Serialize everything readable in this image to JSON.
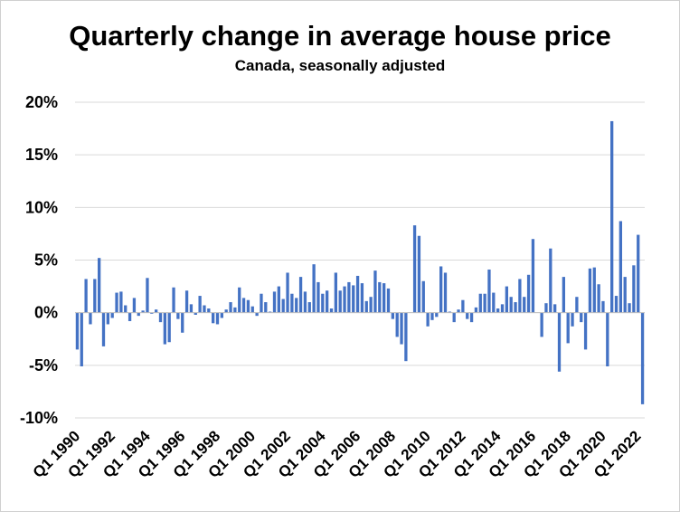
{
  "chart_data": {
    "type": "bar",
    "title": "Quarterly change in average house price",
    "subtitle": "Canada, seasonally adjusted",
    "xlabel": "",
    "ylabel": "",
    "ylim": [
      -10,
      20
    ],
    "yticks": [
      -10,
      -5,
      0,
      5,
      10,
      15,
      20
    ],
    "ytick_labels": [
      "-10%",
      "-5%",
      "0%",
      "5%",
      "10%",
      "15%",
      "20%"
    ],
    "xtick_labels": [
      "Q1 1990",
      "Q1 1992",
      "Q1 1994",
      "Q1 1996",
      "Q1 1998",
      "Q1 2000",
      "Q1 2002",
      "Q1 2004",
      "Q1 2006",
      "Q1 2008",
      "Q1 2010",
      "Q1 2012",
      "Q1 2014",
      "Q1 2016",
      "Q1 2018",
      "Q1 2020",
      "Q1 2022"
    ],
    "start": "Q1 1990",
    "end": "Q1 2022",
    "grid": true,
    "legend": "none",
    "color": "#4472c4",
    "values": [
      -3.5,
      -5.1,
      3.2,
      -1.1,
      3.2,
      5.2,
      -3.2,
      -1.1,
      -0.5,
      1.9,
      2.0,
      0.7,
      -0.8,
      1.4,
      -0.3,
      0.2,
      3.3,
      -0.1,
      0.3,
      -0.9,
      -3.0,
      -2.8,
      2.4,
      -0.6,
      -1.9,
      2.1,
      0.8,
      -0.2,
      1.6,
      0.7,
      0.4,
      -1.0,
      -1.1,
      -0.5,
      0.3,
      1.0,
      0.5,
      2.4,
      1.4,
      1.2,
      0.6,
      -0.3,
      1.8,
      1.0,
      0.1,
      2.0,
      2.5,
      1.3,
      3.8,
      1.8,
      1.4,
      3.4,
      2.0,
      1.0,
      4.6,
      2.9,
      1.8,
      2.1,
      0.4,
      3.8,
      2.1,
      2.5,
      2.9,
      2.6,
      3.5,
      2.8,
      1.1,
      1.5,
      4.0,
      2.9,
      2.8,
      2.3,
      -0.6,
      -2.3,
      -3.0,
      -4.6,
      0.0,
      8.3,
      7.3,
      3.0,
      -1.3,
      -0.7,
      -0.4,
      4.4,
      3.8,
      0.1,
      -0.9,
      0.3,
      1.2,
      -0.6,
      -0.9,
      0.5,
      1.8,
      1.8,
      4.1,
      1.9,
      0.4,
      0.8,
      2.5,
      1.5,
      1.0,
      3.2,
      1.5,
      3.6,
      7.0,
      0.0,
      -2.3,
      0.9,
      6.1,
      0.8,
      -5.6,
      3.4,
      -2.9,
      -1.3,
      1.5,
      -0.9,
      -3.5,
      4.2,
      4.3,
      2.7,
      1.1,
      -5.1,
      18.2,
      1.6,
      8.7,
      3.4,
      0.9,
      4.5,
      7.4,
      -8.7
    ]
  }
}
